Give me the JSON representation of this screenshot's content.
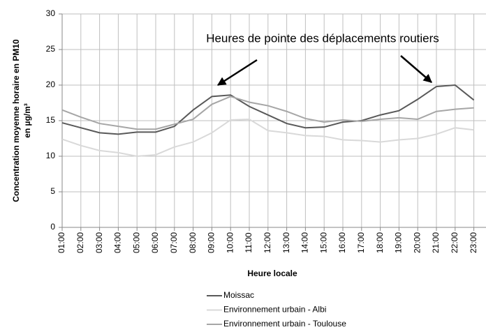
{
  "chart_data": {
    "type": "line",
    "ylabel": [
      "Concentration moyenne horaire en PM10",
      "en µg/m³"
    ],
    "xlabel": "Heure locale",
    "annotation": "Heures de pointe des déplacements routiers",
    "categories": [
      "01:00",
      "02:00",
      "03:00",
      "04:00",
      "05:00",
      "06:00",
      "07:00",
      "08:00",
      "09:00",
      "10:00",
      "11:00",
      "12:00",
      "13:00",
      "14:00",
      "15:00",
      "16:00",
      "17:00",
      "18:00",
      "19:00",
      "20:00",
      "21:00",
      "22:00",
      "23:00"
    ],
    "series": [
      {
        "name": "Moissac",
        "color": "#595959",
        "values": [
          14.7,
          14.0,
          13.3,
          13.1,
          13.4,
          13.4,
          14.2,
          16.5,
          18.4,
          18.6,
          17.0,
          15.8,
          14.6,
          14.0,
          14.1,
          14.8,
          15.0,
          15.8,
          16.4,
          18.0,
          19.8,
          20.0,
          17.9
        ]
      },
      {
        "name": "Environnement urbain - Albi",
        "color": "#d9d9d9",
        "values": [
          12.4,
          11.5,
          10.8,
          10.5,
          10.0,
          10.2,
          11.3,
          12.0,
          13.3,
          15.1,
          15.2,
          13.6,
          13.3,
          12.9,
          12.8,
          12.3,
          12.2,
          12.0,
          12.3,
          12.5,
          13.1,
          14.0,
          13.7
        ]
      },
      {
        "name": "Environnement urbain - Toulouse",
        "color": "#a6a6a6",
        "values": [
          16.5,
          15.5,
          14.6,
          14.2,
          13.8,
          13.8,
          14.5,
          15.2,
          17.3,
          18.4,
          17.6,
          17.1,
          16.3,
          15.3,
          14.8,
          15.1,
          14.9,
          15.2,
          15.4,
          15.2,
          16.3,
          16.6,
          16.8
        ]
      }
    ],
    "ylim": [
      0,
      30
    ],
    "yticks": [
      0,
      5,
      10,
      15,
      20,
      25,
      30
    ],
    "grid": true,
    "legend": "bottom"
  }
}
